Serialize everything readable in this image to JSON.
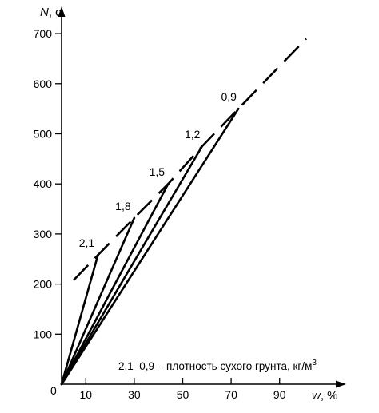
{
  "chart_data": {
    "type": "line",
    "xlabel": "w, %",
    "ylabel": "N, с",
    "xlim": [
      0,
      100
    ],
    "ylim": [
      0,
      720
    ],
    "xticks": [
      "10",
      "30",
      "50",
      "70",
      "90"
    ],
    "xtick_values": [
      10,
      30,
      50,
      70,
      90
    ],
    "yticks": [
      "100",
      "200",
      "300",
      "400",
      "500",
      "600",
      "700"
    ],
    "ytick_values": [
      100,
      200,
      300,
      400,
      500,
      600,
      700
    ],
    "origin_label": "0",
    "series": [
      {
        "name": "2,1",
        "x": [
          0,
          15
        ],
        "y": [
          0,
          258
        ]
      },
      {
        "name": "1,8",
        "x": [
          0,
          30
        ],
        "y": [
          0,
          332
        ]
      },
      {
        "name": "1,5",
        "x": [
          0,
          44
        ],
        "y": [
          0,
          400
        ]
      },
      {
        "name": "1,2",
        "x": [
          0,
          58
        ],
        "y": [
          0,
          475
        ]
      },
      {
        "name": "0,9",
        "x": [
          0,
          73
        ],
        "y": [
          0,
          550
        ]
      }
    ],
    "envelope": {
      "style": "dashed",
      "x": [
        5,
        15,
        30,
        44,
        58,
        73,
        101
      ],
      "y": [
        208,
        258,
        332,
        400,
        475,
        550,
        690
      ]
    },
    "annotation": {
      "text": "2,1–0,9 – плотность сухого грунта, кг/м",
      "superscript": "3"
    }
  }
}
